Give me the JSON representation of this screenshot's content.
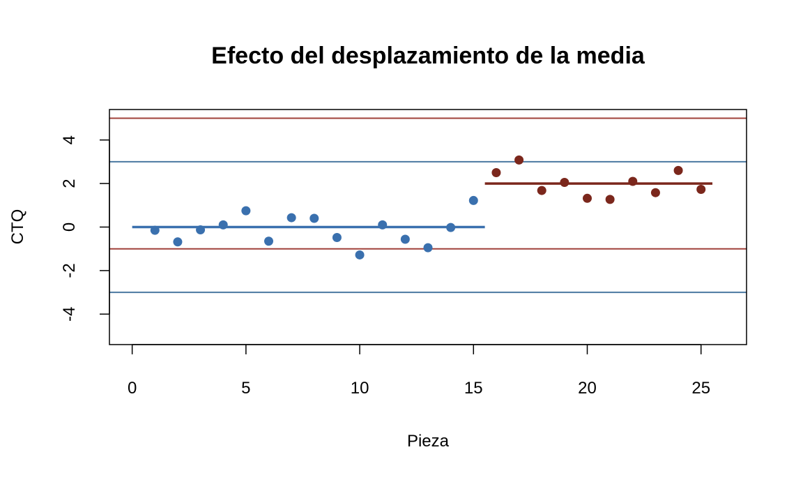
{
  "chart_data": {
    "type": "scatter",
    "title": "Efecto del desplazamiento de la media",
    "xlabel": "Pieza",
    "ylabel": "CTQ",
    "xlim": [
      -1,
      27
    ],
    "ylim": [
      -5.4,
      5.4
    ],
    "xticks": [
      0,
      5,
      10,
      15,
      20,
      25
    ],
    "yticks": [
      -4,
      -2,
      0,
      2,
      4
    ],
    "grid": false,
    "colors": {
      "blue": "#3a70ae",
      "red": "#7b271c",
      "steel": "#4a78a0",
      "brick": "#a0413a"
    },
    "series": [
      {
        "color": "#3a70ae",
        "x": [
          1,
          2,
          3,
          4,
          5,
          6,
          7,
          8,
          9,
          10,
          11,
          12,
          13,
          14,
          15
        ],
        "y": [
          -0.15,
          -0.68,
          -0.13,
          0.1,
          0.75,
          -0.65,
          0.43,
          0.4,
          -0.48,
          -1.28,
          0.1,
          -0.56,
          -0.95,
          -0.02,
          1.22
        ]
      },
      {
        "color": "#7b271c",
        "x": [
          16,
          17,
          18,
          19,
          20,
          21,
          22,
          23,
          24,
          25
        ],
        "y": [
          2.5,
          3.08,
          1.68,
          2.05,
          1.32,
          1.27,
          2.1,
          1.58,
          2.6,
          1.73
        ]
      }
    ],
    "segments": [
      {
        "x": [
          0,
          15.5
        ],
        "y": 0,
        "color": "#3a70ae"
      },
      {
        "x": [
          15.5,
          25.5
        ],
        "y": 2,
        "color": "#7b271c"
      }
    ],
    "reference_lines": [
      {
        "y": 5,
        "color": "#a0413a"
      },
      {
        "y": 3,
        "color": "#4a78a0"
      },
      {
        "y": -1,
        "color": "#a0413a"
      },
      {
        "y": -3,
        "color": "#4a78a0"
      }
    ]
  }
}
